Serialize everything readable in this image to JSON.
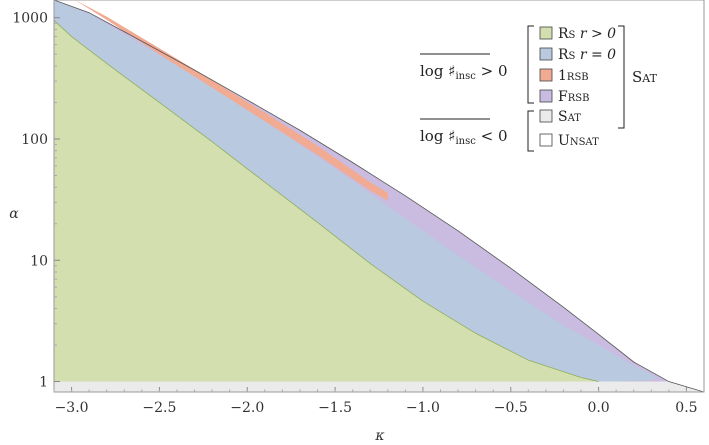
{
  "chart_data": {
    "type": "area",
    "xlabel": "κ",
    "ylabel": "α",
    "xlim": [
      -3.1,
      0.6
    ],
    "ylim": [
      0.82,
      1400
    ],
    "y_scale": "log",
    "x_ticks": [
      {
        "value": -3.0,
        "label": "−3.0"
      },
      {
        "value": -2.5,
        "label": "−2.5"
      },
      {
        "value": -2.0,
        "label": "−2.0"
      },
      {
        "value": -1.5,
        "label": "−1.5"
      },
      {
        "value": -1.0,
        "label": "−1.0"
      },
      {
        "value": -0.5,
        "label": "−0.5"
      },
      {
        "value": 0.0,
        "label": "0.0"
      },
      {
        "value": 0.5,
        "label": "0.5"
      }
    ],
    "y_ticks": [
      {
        "value": 1,
        "label": "1"
      },
      {
        "value": 10,
        "label": "10"
      },
      {
        "value": 100,
        "label": "100"
      },
      {
        "value": 1000,
        "label": "1000"
      }
    ],
    "colors": {
      "rs_pos": "#d3dfae",
      "rs_zero": "#b9c9df",
      "one_rsb": "#f2ab93",
      "frsb": "#c9bce0",
      "sat": "#ebebeb",
      "unsat": "#ffffff"
    },
    "boundaries": {
      "sat_unsat": {
        "x": [
          -3.1,
          -2.9,
          -2.6,
          -2.3,
          -2.0,
          -1.7,
          -1.4,
          -1.1,
          -0.8,
          -0.5,
          -0.2,
          0.0,
          0.2,
          0.4,
          0.6
        ],
        "y": [
          1400,
          1100,
          640,
          370,
          210,
          118,
          64,
          34,
          17.5,
          8.6,
          4.1,
          2.45,
          1.45,
          1.0,
          0.82
        ]
      },
      "rs_zero_upper": {
        "x": [
          -3.1,
          -2.9,
          -2.6,
          -2.3,
          -2.0,
          -1.7,
          -1.4,
          -1.1,
          -0.8,
          -0.5,
          -0.2,
          0.0,
          0.2,
          0.3
        ],
        "y": [
          1400,
          1080,
          600,
          330,
          175,
          90,
          45,
          22,
          11,
          5.6,
          2.9,
          2.0,
          1.35,
          1.15
        ]
      },
      "rs_zero_right_edge": {
        "x": [
          0.3,
          0.33,
          0.3,
          0.2,
          0.1,
          0.0
        ],
        "y": [
          1.15,
          1.08,
          1.03,
          1.01,
          1.0,
          1.0
        ]
      },
      "rs_pos_upper": {
        "x": [
          -3.1,
          -3.0,
          -2.8,
          -2.5,
          -2.2,
          -1.9,
          -1.6,
          -1.3,
          -1.0,
          -0.7,
          -0.4,
          -0.1,
          0.0
        ],
        "y": [
          950,
          700,
          420,
          200,
          95,
          44,
          20.5,
          9.4,
          4.6,
          2.5,
          1.5,
          1.08,
          1.0
        ]
      },
      "one_rsb_band": {
        "x": [
          -2.98,
          -2.8,
          -2.5,
          -2.2,
          -1.9,
          -1.6,
          -1.3,
          -1.2
        ],
        "y_upper": [
          1400,
          1020,
          560,
          305,
          165,
          88,
          44,
          36
        ],
        "y_lower": [
          1400,
          960,
          500,
          265,
          140,
          74,
          37.5,
          31
        ]
      },
      "alpha_floor": 1
    }
  },
  "legend": {
    "groups": [
      {
        "label_main": "log ♯",
        "label_sub": "insc",
        "label_tail": " > 0"
      },
      {
        "label_main": "log ♯",
        "label_sub": "insc",
        "label_tail": " < 0"
      }
    ],
    "items": [
      {
        "text": "Rs r > 0",
        "color": "#d3dfae",
        "text_rs": "R",
        "text_rs_small": "S",
        "text_rest": " r > 0"
      },
      {
        "text": "Rs r = 0",
        "color": "#b9c9df",
        "text_rs": "R",
        "text_rs_small": "S",
        "text_rest": " r = 0"
      },
      {
        "text": "1RSB",
        "color": "#f2ab93",
        "text_rs": "1",
        "text_rs_small": "RSB",
        "text_rest": ""
      },
      {
        "text": "FRSB",
        "color": "#c9bce0",
        "text_rs": "F",
        "text_rs_small": "RSB",
        "text_rest": ""
      },
      {
        "text": "SAT",
        "color": "#ebebeb",
        "text_rs": "S",
        "text_rs_small": "AT",
        "text_rest": ""
      },
      {
        "text": "UNSAT",
        "color": "#ffffff",
        "text_rs": "U",
        "text_rs_small": "NSAT",
        "text_rest": ""
      }
    ],
    "sat_bracket": {
      "text_big": "S",
      "text_small": "AT"
    }
  }
}
